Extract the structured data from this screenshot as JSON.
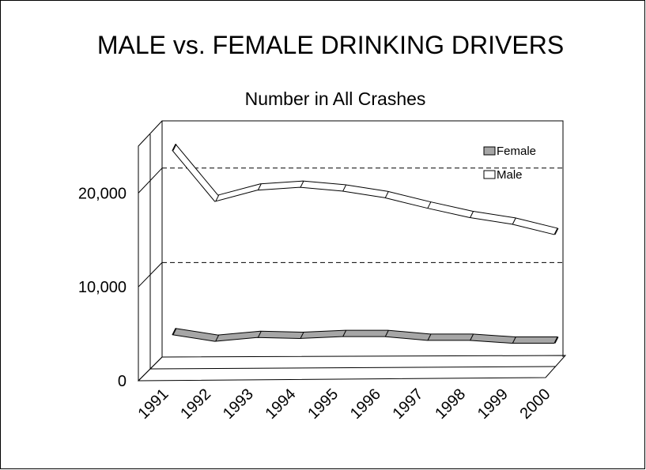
{
  "chart_data": {
    "type": "line3d",
    "title": "MALE vs. FEMALE DRINKING DRIVERS",
    "subtitle": "Number in All Crashes",
    "categories": [
      "1991",
      "1992",
      "1993",
      "1994",
      "1995",
      "1996",
      "1997",
      "1998",
      "1999",
      "2000"
    ],
    "series": [
      {
        "name": "Female",
        "color": "#a6a6a6",
        "values": [
          2700,
          2000,
          2400,
          2300,
          2500,
          2500,
          2100,
          2100,
          1800,
          1800
        ]
      },
      {
        "name": "Male",
        "color": "#ffffff",
        "values": [
          22200,
          16800,
          18000,
          18300,
          17900,
          17200,
          16100,
          15100,
          14400,
          13300
        ]
      }
    ],
    "ylim": [
      0,
      25000
    ],
    "yticks": [
      0,
      {
        "value": 10000,
        "label": "10,000"
      },
      {
        "value": 20000,
        "label": "20,000"
      }
    ],
    "grid": true,
    "legend": "upper right"
  }
}
